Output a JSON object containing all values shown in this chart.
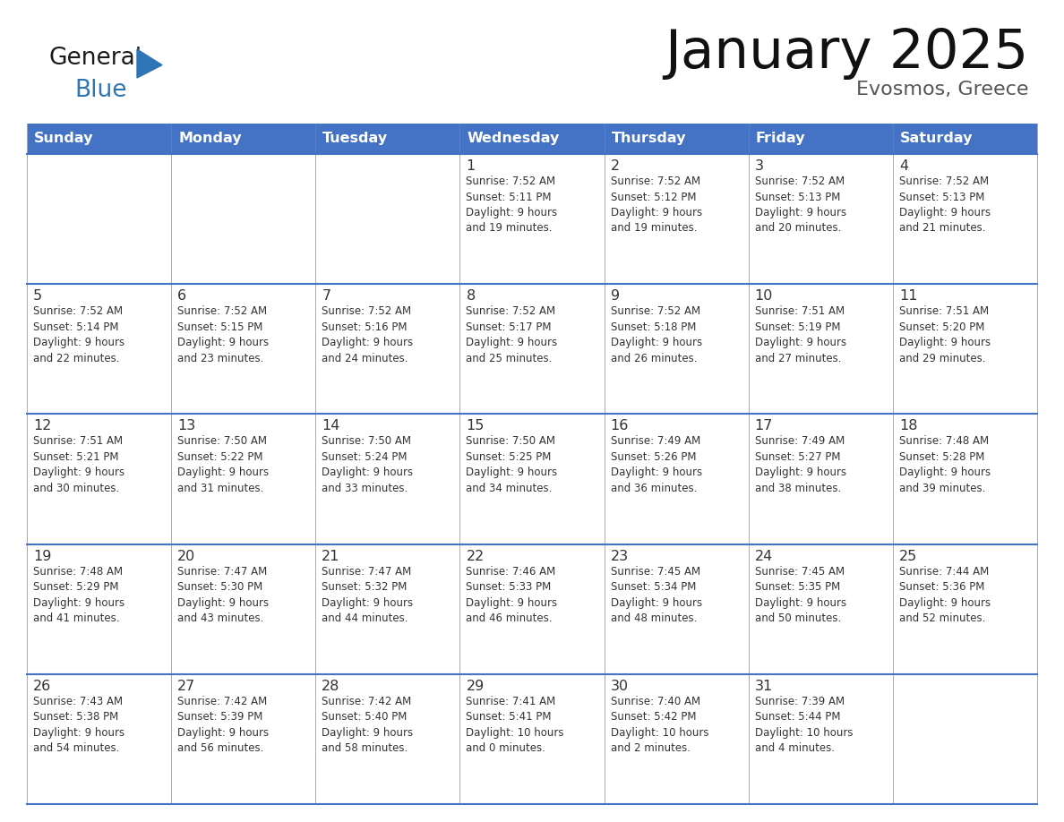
{
  "title": "January 2025",
  "subtitle": "Evosmos, Greece",
  "days_of_week": [
    "Sunday",
    "Monday",
    "Tuesday",
    "Wednesday",
    "Thursday",
    "Friday",
    "Saturday"
  ],
  "header_bg": "#4472C4",
  "header_text": "#FFFFFF",
  "cell_bg": "#FFFFFF",
  "cell_bg_alt": "#F0F4FA",
  "border_color": "#4472C4",
  "grid_line_color": "#AAAAAA",
  "text_color": "#333333",
  "title_color": "#111111",
  "subtitle_color": "#555555",
  "logo_general_color": "#1a1a1a",
  "logo_blue_color": "#2E75B6",
  "logo_triangle_color": "#2E75B6",
  "weeks": [
    [
      {
        "day": "",
        "info": ""
      },
      {
        "day": "",
        "info": ""
      },
      {
        "day": "",
        "info": ""
      },
      {
        "day": "1",
        "info": "Sunrise: 7:52 AM\nSunset: 5:11 PM\nDaylight: 9 hours\nand 19 minutes."
      },
      {
        "day": "2",
        "info": "Sunrise: 7:52 AM\nSunset: 5:12 PM\nDaylight: 9 hours\nand 19 minutes."
      },
      {
        "day": "3",
        "info": "Sunrise: 7:52 AM\nSunset: 5:13 PM\nDaylight: 9 hours\nand 20 minutes."
      },
      {
        "day": "4",
        "info": "Sunrise: 7:52 AM\nSunset: 5:13 PM\nDaylight: 9 hours\nand 21 minutes."
      }
    ],
    [
      {
        "day": "5",
        "info": "Sunrise: 7:52 AM\nSunset: 5:14 PM\nDaylight: 9 hours\nand 22 minutes."
      },
      {
        "day": "6",
        "info": "Sunrise: 7:52 AM\nSunset: 5:15 PM\nDaylight: 9 hours\nand 23 minutes."
      },
      {
        "day": "7",
        "info": "Sunrise: 7:52 AM\nSunset: 5:16 PM\nDaylight: 9 hours\nand 24 minutes."
      },
      {
        "day": "8",
        "info": "Sunrise: 7:52 AM\nSunset: 5:17 PM\nDaylight: 9 hours\nand 25 minutes."
      },
      {
        "day": "9",
        "info": "Sunrise: 7:52 AM\nSunset: 5:18 PM\nDaylight: 9 hours\nand 26 minutes."
      },
      {
        "day": "10",
        "info": "Sunrise: 7:51 AM\nSunset: 5:19 PM\nDaylight: 9 hours\nand 27 minutes."
      },
      {
        "day": "11",
        "info": "Sunrise: 7:51 AM\nSunset: 5:20 PM\nDaylight: 9 hours\nand 29 minutes."
      }
    ],
    [
      {
        "day": "12",
        "info": "Sunrise: 7:51 AM\nSunset: 5:21 PM\nDaylight: 9 hours\nand 30 minutes."
      },
      {
        "day": "13",
        "info": "Sunrise: 7:50 AM\nSunset: 5:22 PM\nDaylight: 9 hours\nand 31 minutes."
      },
      {
        "day": "14",
        "info": "Sunrise: 7:50 AM\nSunset: 5:24 PM\nDaylight: 9 hours\nand 33 minutes."
      },
      {
        "day": "15",
        "info": "Sunrise: 7:50 AM\nSunset: 5:25 PM\nDaylight: 9 hours\nand 34 minutes."
      },
      {
        "day": "16",
        "info": "Sunrise: 7:49 AM\nSunset: 5:26 PM\nDaylight: 9 hours\nand 36 minutes."
      },
      {
        "day": "17",
        "info": "Sunrise: 7:49 AM\nSunset: 5:27 PM\nDaylight: 9 hours\nand 38 minutes."
      },
      {
        "day": "18",
        "info": "Sunrise: 7:48 AM\nSunset: 5:28 PM\nDaylight: 9 hours\nand 39 minutes."
      }
    ],
    [
      {
        "day": "19",
        "info": "Sunrise: 7:48 AM\nSunset: 5:29 PM\nDaylight: 9 hours\nand 41 minutes."
      },
      {
        "day": "20",
        "info": "Sunrise: 7:47 AM\nSunset: 5:30 PM\nDaylight: 9 hours\nand 43 minutes."
      },
      {
        "day": "21",
        "info": "Sunrise: 7:47 AM\nSunset: 5:32 PM\nDaylight: 9 hours\nand 44 minutes."
      },
      {
        "day": "22",
        "info": "Sunrise: 7:46 AM\nSunset: 5:33 PM\nDaylight: 9 hours\nand 46 minutes."
      },
      {
        "day": "23",
        "info": "Sunrise: 7:45 AM\nSunset: 5:34 PM\nDaylight: 9 hours\nand 48 minutes."
      },
      {
        "day": "24",
        "info": "Sunrise: 7:45 AM\nSunset: 5:35 PM\nDaylight: 9 hours\nand 50 minutes."
      },
      {
        "day": "25",
        "info": "Sunrise: 7:44 AM\nSunset: 5:36 PM\nDaylight: 9 hours\nand 52 minutes."
      }
    ],
    [
      {
        "day": "26",
        "info": "Sunrise: 7:43 AM\nSunset: 5:38 PM\nDaylight: 9 hours\nand 54 minutes."
      },
      {
        "day": "27",
        "info": "Sunrise: 7:42 AM\nSunset: 5:39 PM\nDaylight: 9 hours\nand 56 minutes."
      },
      {
        "day": "28",
        "info": "Sunrise: 7:42 AM\nSunset: 5:40 PM\nDaylight: 9 hours\nand 58 minutes."
      },
      {
        "day": "29",
        "info": "Sunrise: 7:41 AM\nSunset: 5:41 PM\nDaylight: 10 hours\nand 0 minutes."
      },
      {
        "day": "30",
        "info": "Sunrise: 7:40 AM\nSunset: 5:42 PM\nDaylight: 10 hours\nand 2 minutes."
      },
      {
        "day": "31",
        "info": "Sunrise: 7:39 AM\nSunset: 5:44 PM\nDaylight: 10 hours\nand 4 minutes."
      },
      {
        "day": "",
        "info": ""
      }
    ]
  ]
}
